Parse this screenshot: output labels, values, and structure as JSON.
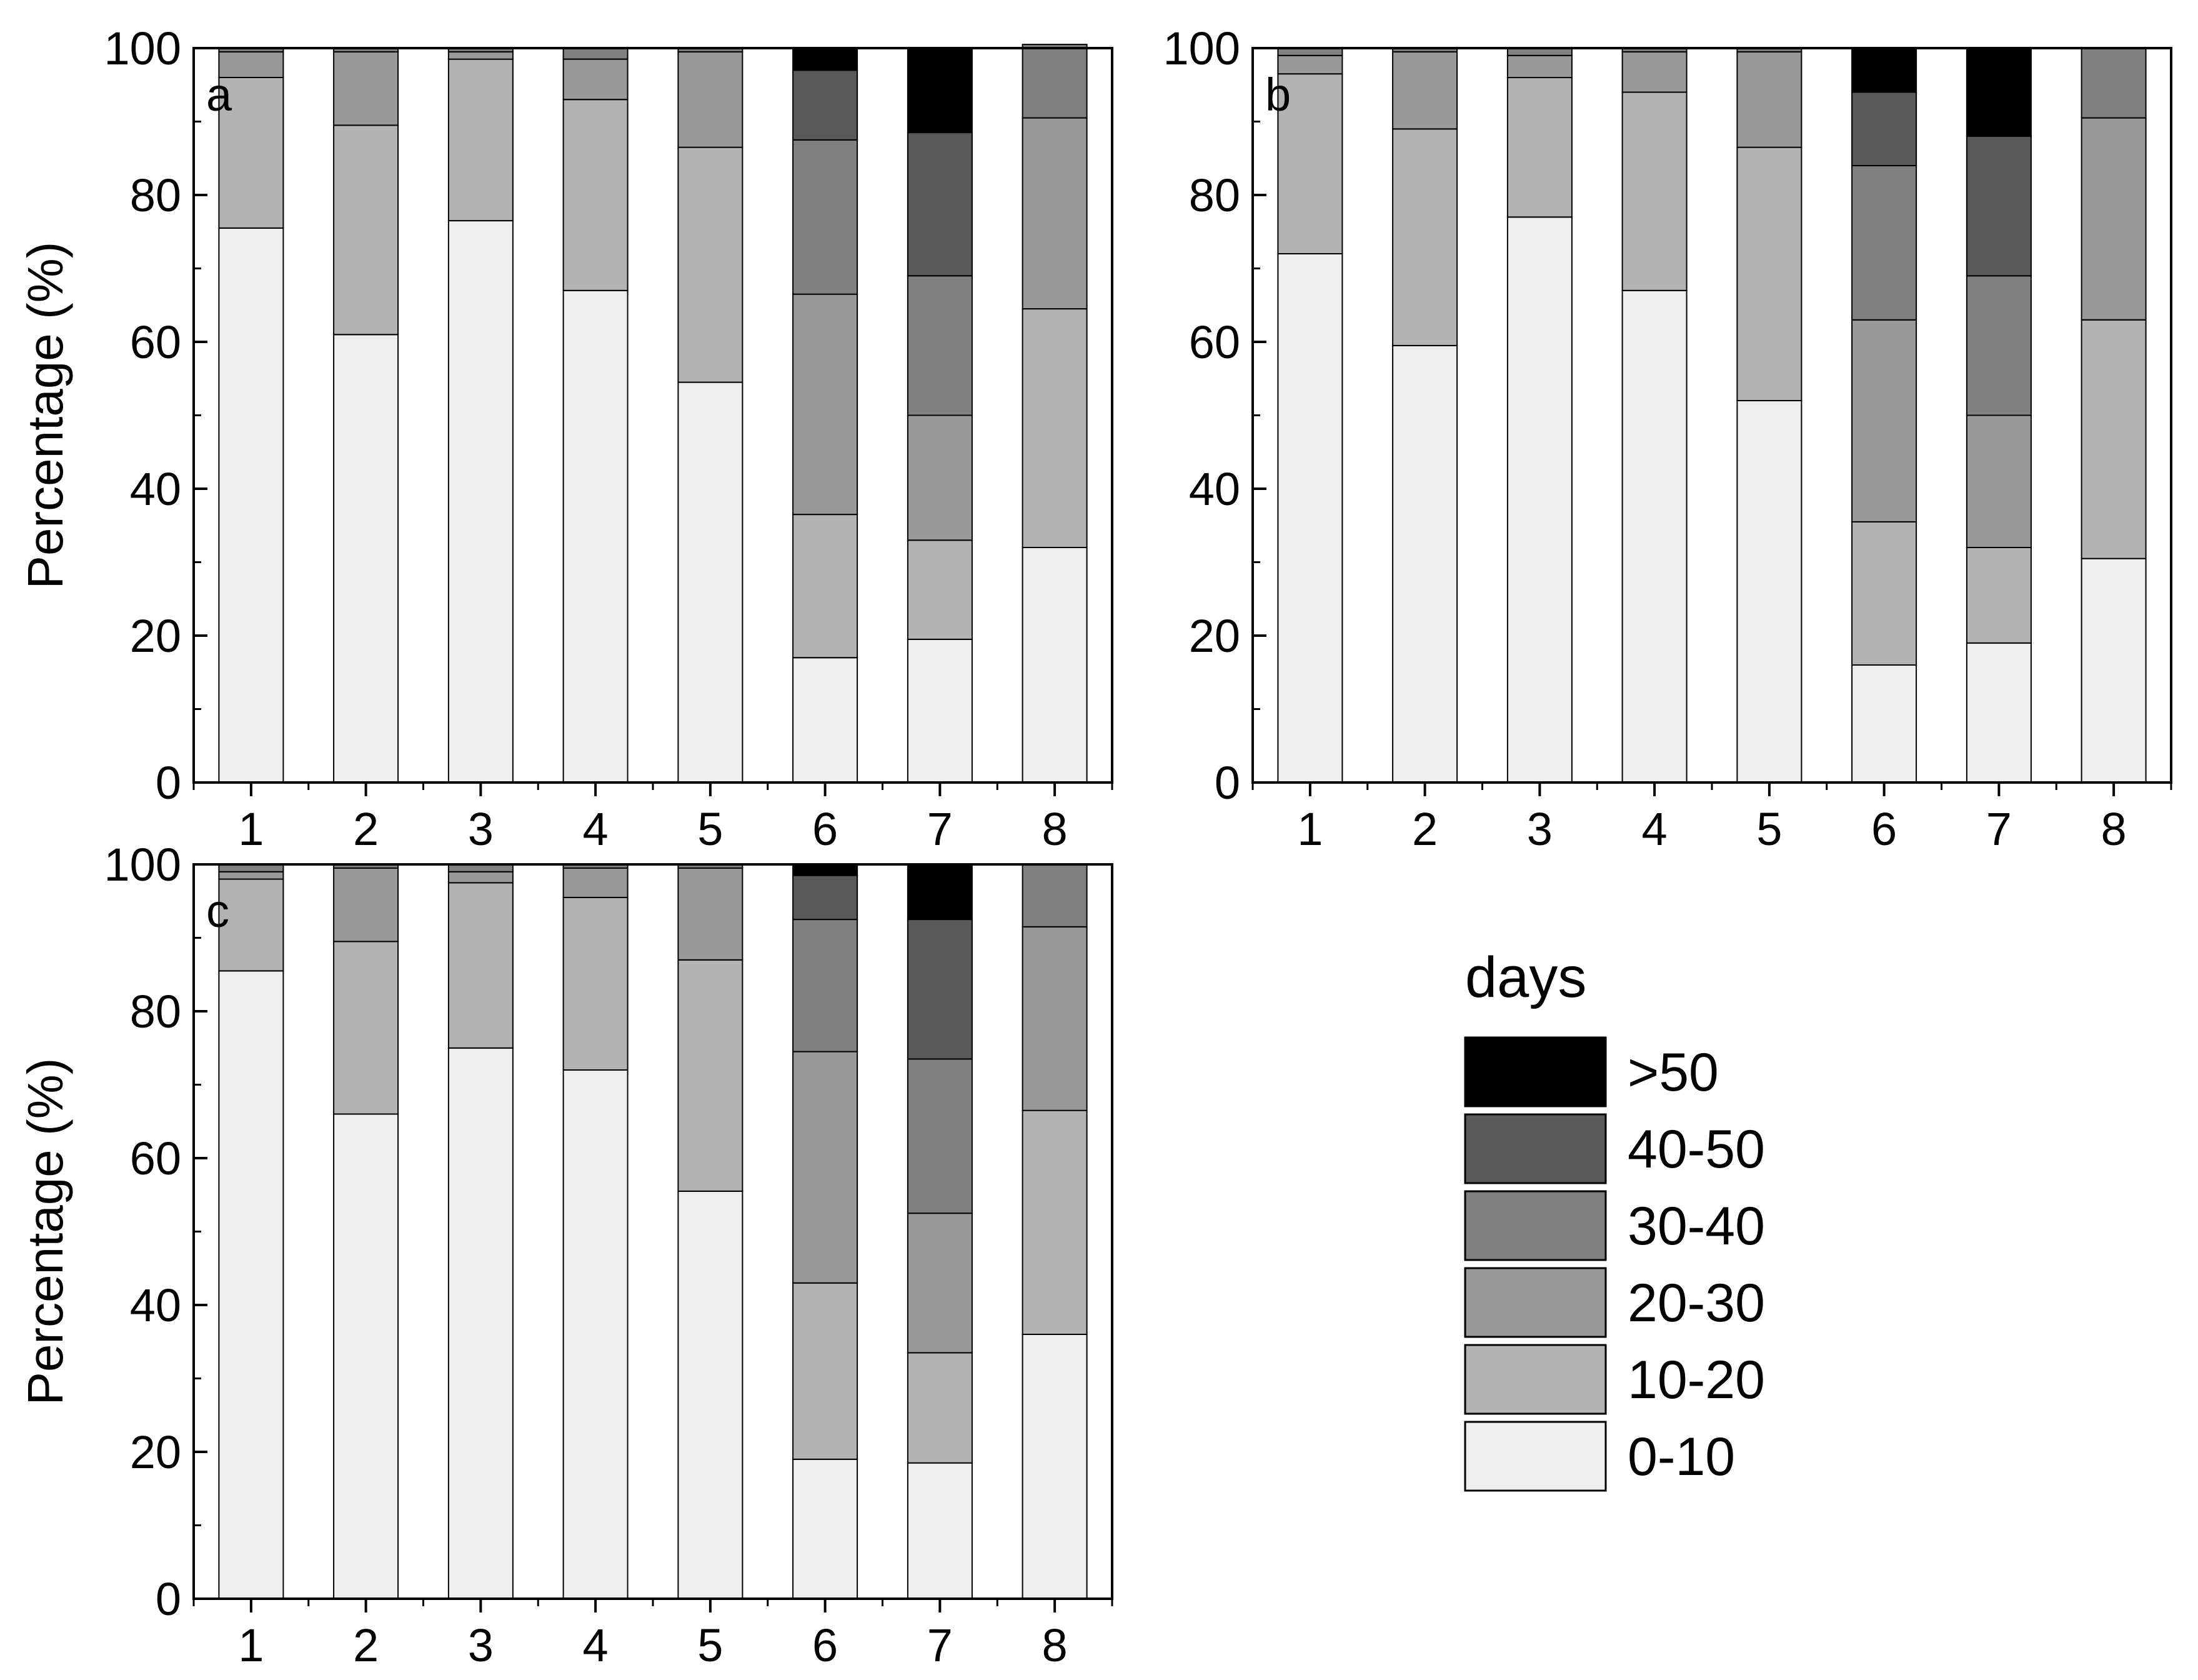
{
  "chart_data": {
    "type": "bar",
    "stacked": true,
    "categories": [
      "1",
      "2",
      "3",
      "4",
      "5",
      "6",
      "7",
      "8"
    ],
    "ylabel": "Percentage (%)",
    "ylim": [
      0,
      100
    ],
    "yticks": [
      "0",
      "20",
      "40",
      "60",
      "80",
      "100"
    ],
    "legend": {
      "title": "days",
      "placement": "bottom-right",
      "entries": [
        {
          "label": ">50",
          "color": "#000000"
        },
        {
          "label": "40-50",
          "color": "#595959"
        },
        {
          "label": "30-40",
          "color": "#808080"
        },
        {
          "label": "20-30",
          "color": "#999999"
        },
        {
          "label": "10-20",
          "color": "#b3b3b3"
        },
        {
          "label": "0-10",
          "color": "#eeeeee"
        }
      ]
    },
    "series_colors": {
      "0-10": "#eeeeee",
      "10-20": "#b3b3b3",
      "20-30": "#999999",
      "30-40": "#808080",
      "40-50": "#595959",
      ">50": "#000000"
    },
    "panels": [
      {
        "label": "a",
        "series": [
          {
            "name": "0-10",
            "values": [
              75.5,
              61,
              76.5,
              67,
              54.5,
              17,
              19.5,
              32
            ]
          },
          {
            "name": "10-20",
            "values": [
              20.5,
              28.5,
              22,
              26,
              32,
              19.5,
              13.5,
              32.5
            ]
          },
          {
            "name": "20-30",
            "values": [
              3.5,
              10,
              1,
              5.5,
              13,
              30,
              17,
              26
            ]
          },
          {
            "name": "30-40",
            "values": [
              0.5,
              0.5,
              0.5,
              1.5,
              0.5,
              21,
              19,
              10
            ]
          },
          {
            "name": "40-50",
            "values": [
              0,
              0,
              0,
              0,
              0,
              9.5,
              19.5,
              0
            ]
          },
          {
            ">50": 0,
            "name": ">50",
            "values": [
              0,
              0,
              0,
              0,
              0,
              3,
              11.5,
              0
            ]
          }
        ]
      },
      {
        "label": "b",
        "series": [
          {
            "name": "0-10",
            "values": [
              72,
              59.5,
              77,
              67,
              52,
              16,
              19,
              30.5
            ]
          },
          {
            "name": "10-20",
            "values": [
              24.5,
              29.5,
              19,
              27,
              34.5,
              19.5,
              13,
              32.5
            ]
          },
          {
            "name": "20-30",
            "values": [
              2.5,
              10.5,
              3,
              5.5,
              13,
              27.5,
              18,
              27.5
            ]
          },
          {
            "name": "30-40",
            "values": [
              1,
              0.5,
              1,
              0.5,
              0.5,
              21,
              19,
              9.5
            ]
          },
          {
            "name": "40-50",
            "values": [
              0,
              0,
              0,
              0,
              0,
              10,
              19,
              0
            ]
          },
          {
            "name": ">50",
            "values": [
              0,
              0,
              0,
              0,
              0,
              6,
              12,
              0
            ]
          }
        ]
      },
      {
        "label": "c",
        "series": [
          {
            "name": "0-10",
            "values": [
              85.5,
              66,
              75,
              72,
              55.5,
              19,
              18.5,
              36
            ]
          },
          {
            "name": "10-20",
            "values": [
              12.5,
              23.5,
              22.5,
              23.5,
              31.5,
              24,
              15,
              30.5
            ]
          },
          {
            "name": "20-30",
            "values": [
              1,
              10,
              1.5,
              4,
              12.5,
              31.5,
              19,
              25
            ]
          },
          {
            "name": "30-40",
            "values": [
              1,
              0.5,
              1,
              0.5,
              0.5,
              18,
              21,
              8.5
            ]
          },
          {
            "name": "40-50",
            "values": [
              0,
              0,
              0,
              0,
              0,
              6,
              19,
              0
            ]
          },
          {
            "name": ">50",
            "values": [
              0,
              0,
              0,
              0,
              0,
              1.5,
              7.5,
              0
            ]
          }
        ]
      }
    ]
  }
}
